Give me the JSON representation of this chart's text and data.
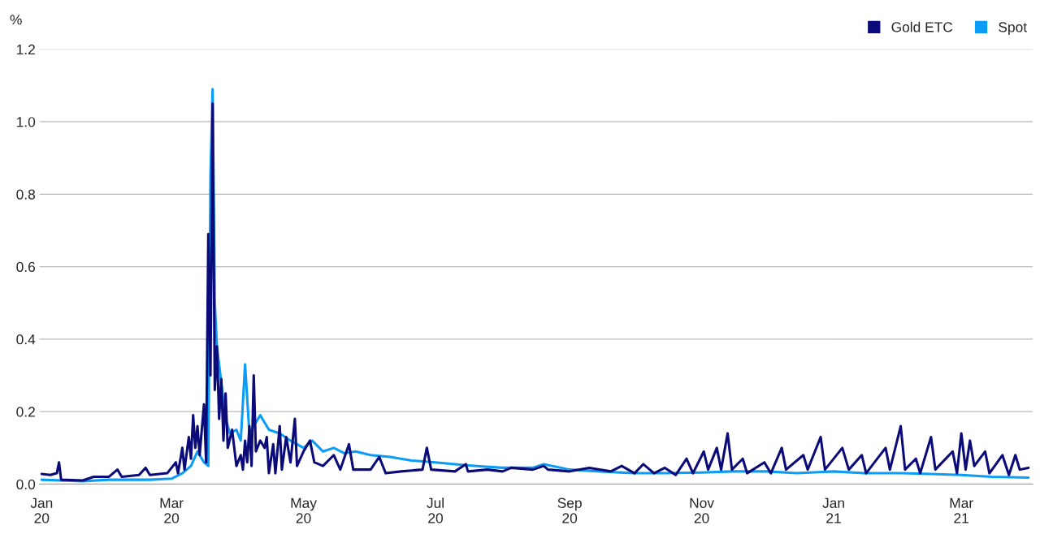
{
  "chart_data": {
    "type": "line",
    "ylabel": "%",
    "legend": "top right",
    "grid": "y",
    "line_style": "solid",
    "xlim": [
      "2019-12-31",
      "2021-04-03"
    ],
    "xticks": [
      {
        "value": "2020-01-01",
        "label": "Jan\n20"
      },
      {
        "value": "2020-03-01",
        "label": "Mar\n20"
      },
      {
        "value": "2020-05-01",
        "label": "May\n20"
      },
      {
        "value": "2020-07-01",
        "label": "Jul\n20"
      },
      {
        "value": "2020-09-01",
        "label": "Sep\n20"
      },
      {
        "value": "2020-11-01",
        "label": "Nov\n20"
      },
      {
        "value": "2021-01-01",
        "label": "Jan\n21"
      },
      {
        "value": "2021-03-01",
        "label": "Mar\n21"
      }
    ],
    "ylim": [
      0,
      1.2
    ],
    "yticks": [
      {
        "value": 0,
        "label": "0.0"
      },
      {
        "value": 0.2,
        "label": "0.2"
      },
      {
        "value": 0.4,
        "label": "0.4"
      },
      {
        "value": 0.6,
        "label": "0.6"
      },
      {
        "value": 0.8,
        "label": "0.8"
      },
      {
        "value": 1.0,
        "label": "1.0"
      },
      {
        "value": 1.2,
        "label": "1.2"
      }
    ],
    "series": [
      {
        "name": "Spot",
        "color": "#0b9cf5",
        "x": [
          "2020-01-01",
          "2020-01-20",
          "2020-02-01",
          "2020-02-20",
          "2020-03-01",
          "2020-03-06",
          "2020-03-10",
          "2020-03-13",
          "2020-03-16",
          "2020-03-18",
          "2020-03-19",
          "2020-03-20",
          "2020-03-21",
          "2020-03-22",
          "2020-03-24",
          "2020-03-26",
          "2020-03-28",
          "2020-03-31",
          "2020-04-02",
          "2020-04-04",
          "2020-04-06",
          "2020-04-09",
          "2020-04-11",
          "2020-04-15",
          "2020-04-20",
          "2020-04-25",
          "2020-05-01",
          "2020-05-05",
          "2020-05-10",
          "2020-05-15",
          "2020-05-20",
          "2020-05-25",
          "2020-06-01",
          "2020-06-10",
          "2020-06-20",
          "2020-07-01",
          "2020-07-10",
          "2020-07-20",
          "2020-08-01",
          "2020-08-15",
          "2020-08-20",
          "2020-09-01",
          "2020-09-15",
          "2020-10-01",
          "2020-10-15",
          "2020-11-01",
          "2020-11-15",
          "2020-12-01",
          "2020-12-15",
          "2021-01-01",
          "2021-01-15",
          "2021-02-01",
          "2021-02-15",
          "2021-03-01",
          "2021-03-15",
          "2021-04-01"
        ],
        "values": [
          0.012,
          0.008,
          0.012,
          0.012,
          0.015,
          0.03,
          0.05,
          0.09,
          0.06,
          0.05,
          0.85,
          1.09,
          0.5,
          0.38,
          0.28,
          0.18,
          0.14,
          0.15,
          0.12,
          0.33,
          0.14,
          0.17,
          0.19,
          0.15,
          0.14,
          0.12,
          0.1,
          0.12,
          0.09,
          0.1,
          0.085,
          0.09,
          0.08,
          0.075,
          0.065,
          0.06,
          0.055,
          0.05,
          0.045,
          0.045,
          0.055,
          0.04,
          0.035,
          0.03,
          0.03,
          0.032,
          0.035,
          0.035,
          0.03,
          0.035,
          0.03,
          0.03,
          0.028,
          0.025,
          0.02,
          0.018
        ]
      },
      {
        "name": "Gold ETC",
        "color": "#0a0a78",
        "x": [
          "2020-01-01",
          "2020-01-05",
          "2020-01-08",
          "2020-01-09",
          "2020-01-10",
          "2020-01-20",
          "2020-01-25",
          "2020-02-01",
          "2020-02-05",
          "2020-02-07",
          "2020-02-15",
          "2020-02-18",
          "2020-02-20",
          "2020-02-28",
          "2020-03-03",
          "2020-03-04",
          "2020-03-06",
          "2020-03-07",
          "2020-03-09",
          "2020-03-10",
          "2020-03-11",
          "2020-03-12",
          "2020-03-13",
          "2020-03-14",
          "2020-03-16",
          "2020-03-17",
          "2020-03-18",
          "2020-03-19",
          "2020-03-20",
          "2020-03-21",
          "2020-03-22",
          "2020-03-23",
          "2020-03-24",
          "2020-03-25",
          "2020-03-26",
          "2020-03-27",
          "2020-03-29",
          "2020-03-31",
          "2020-04-02",
          "2020-04-03",
          "2020-04-04",
          "2020-04-05",
          "2020-04-06",
          "2020-04-07",
          "2020-04-08",
          "2020-04-09",
          "2020-04-11",
          "2020-04-13",
          "2020-04-14",
          "2020-04-15",
          "2020-04-17",
          "2020-04-18",
          "2020-04-20",
          "2020-04-21",
          "2020-04-23",
          "2020-04-25",
          "2020-04-27",
          "2020-04-28",
          "2020-05-01",
          "2020-05-04",
          "2020-05-06",
          "2020-05-10",
          "2020-05-15",
          "2020-05-18",
          "2020-05-22",
          "2020-05-24",
          "2020-06-01",
          "2020-06-05",
          "2020-06-08",
          "2020-06-15",
          "2020-06-25",
          "2020-06-27",
          "2020-06-29",
          "2020-07-10",
          "2020-07-15",
          "2020-07-16",
          "2020-07-25",
          "2020-08-01",
          "2020-08-05",
          "2020-08-15",
          "2020-08-20",
          "2020-08-22",
          "2020-09-01",
          "2020-09-10",
          "2020-09-20",
          "2020-09-25",
          "2020-10-01",
          "2020-10-05",
          "2020-10-10",
          "2020-10-15",
          "2020-10-20",
          "2020-10-25",
          "2020-10-28",
          "2020-11-02",
          "2020-11-04",
          "2020-11-08",
          "2020-11-10",
          "2020-11-13",
          "2020-11-15",
          "2020-11-20",
          "2020-11-22",
          "2020-11-30",
          "2020-12-03",
          "2020-12-08",
          "2020-12-10",
          "2020-12-18",
          "2020-12-20",
          "2020-12-26",
          "2020-12-28",
          "2021-01-05",
          "2021-01-08",
          "2021-01-14",
          "2021-01-16",
          "2021-01-25",
          "2021-01-27",
          "2021-02-01",
          "2021-02-03",
          "2021-02-08",
          "2021-02-10",
          "2021-02-15",
          "2021-02-17",
          "2021-02-25",
          "2021-02-27",
          "2021-03-01",
          "2021-03-03",
          "2021-03-05",
          "2021-03-07",
          "2021-03-12",
          "2021-03-14",
          "2021-03-20",
          "2021-03-23",
          "2021-03-26",
          "2021-03-28",
          "2021-04-01"
        ],
        "values": [
          0.028,
          0.025,
          0.03,
          0.06,
          0.012,
          0.01,
          0.02,
          0.02,
          0.04,
          0.02,
          0.025,
          0.045,
          0.025,
          0.03,
          0.06,
          0.03,
          0.1,
          0.04,
          0.13,
          0.07,
          0.19,
          0.1,
          0.16,
          0.08,
          0.22,
          0.06,
          0.69,
          0.3,
          1.05,
          0.26,
          0.38,
          0.18,
          0.29,
          0.12,
          0.25,
          0.1,
          0.15,
          0.05,
          0.08,
          0.04,
          0.12,
          0.06,
          0.16,
          0.05,
          0.3,
          0.09,
          0.12,
          0.1,
          0.13,
          0.03,
          0.11,
          0.03,
          0.16,
          0.04,
          0.13,
          0.06,
          0.18,
          0.05,
          0.09,
          0.12,
          0.06,
          0.05,
          0.08,
          0.04,
          0.11,
          0.04,
          0.04,
          0.075,
          0.03,
          0.035,
          0.04,
          0.1,
          0.04,
          0.035,
          0.055,
          0.035,
          0.04,
          0.035,
          0.045,
          0.04,
          0.05,
          0.04,
          0.035,
          0.045,
          0.035,
          0.05,
          0.03,
          0.055,
          0.03,
          0.045,
          0.025,
          0.07,
          0.03,
          0.09,
          0.04,
          0.1,
          0.04,
          0.14,
          0.04,
          0.07,
          0.03,
          0.06,
          0.03,
          0.1,
          0.04,
          0.08,
          0.04,
          0.13,
          0.04,
          0.1,
          0.04,
          0.08,
          0.03,
          0.1,
          0.04,
          0.16,
          0.04,
          0.07,
          0.03,
          0.13,
          0.04,
          0.09,
          0.03,
          0.14,
          0.04,
          0.12,
          0.05,
          0.09,
          0.03,
          0.08,
          0.025,
          0.08,
          0.04,
          0.045
        ]
      }
    ]
  }
}
